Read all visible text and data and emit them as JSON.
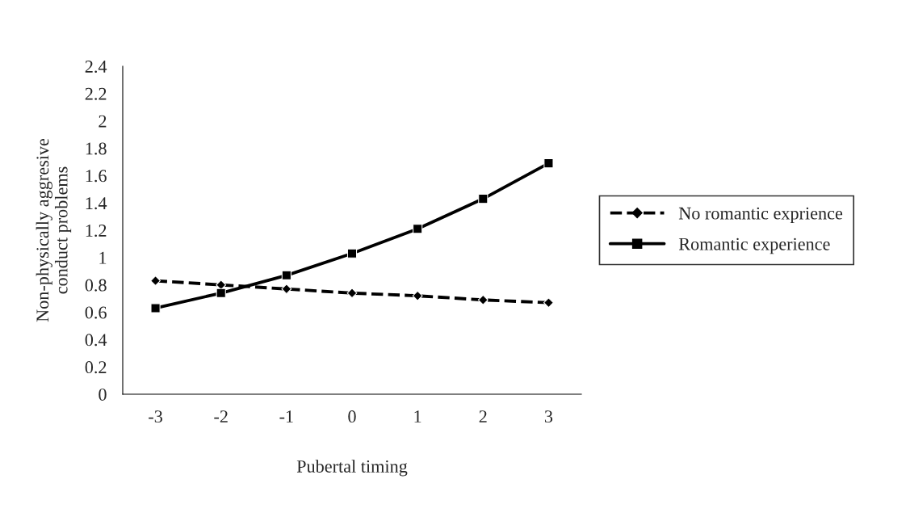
{
  "chart_data": {
    "type": "line",
    "xlabel": "Pubertal timing",
    "ylabel": "Non-physically aggresive\nconduct problems",
    "categories": [
      "-3",
      "-2",
      "-1",
      "0",
      "1",
      "2",
      "3"
    ],
    "series": [
      {
        "name": "No romantic exprience",
        "color": "#000000",
        "values": [
          0.83,
          0.8,
          0.77,
          0.74,
          0.72,
          0.69,
          0.67
        ],
        "marker": "diamond",
        "line_style": "dashed"
      },
      {
        "name": "Romantic experience",
        "color": "#000000",
        "values": [
          0.63,
          0.74,
          0.87,
          1.03,
          1.21,
          1.43,
          1.69
        ],
        "marker": "square",
        "line_style": "solid"
      }
    ],
    "ylim": [
      0,
      2.4
    ],
    "yticks": [
      0,
      0.2,
      0.4,
      0.6,
      0.8,
      1,
      1.2,
      1.4,
      1.6,
      1.8,
      2,
      2.2,
      2.4
    ],
    "grid": false,
    "legend": "right"
  }
}
